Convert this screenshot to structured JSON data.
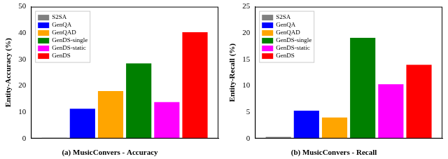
{
  "chart_data": [
    {
      "type": "bar",
      "title": "(a) MusicConvers - Accuracy",
      "y_label": "Entity-Accuracy (%)",
      "categories": [
        null
      ],
      "series": [
        {
          "name": "S2SA",
          "color": "#808080",
          "values": [
            0.3
          ]
        },
        {
          "name": "GenQA",
          "color": "#0000ff",
          "values": [
            11.3
          ]
        },
        {
          "name": "GenQAD",
          "color": "#ffa500",
          "values": [
            18
          ]
        },
        {
          "name": "GenDS-single",
          "color": "#008000",
          "values": [
            28.5
          ]
        },
        {
          "name": "GenDS-static",
          "color": "#ff00ff",
          "values": [
            13.8
          ]
        },
        {
          "name": "GenDS",
          "color": "#ff0000",
          "values": [
            40.3
          ]
        }
      ],
      "ylim": [
        0,
        50
      ],
      "yticks": [
        0,
        10,
        20,
        30,
        40,
        50
      ],
      "legend": "upper left",
      "grid": false,
      "tick_labels": "y"
    },
    {
      "type": "bar",
      "title": "(b) MusicConvers - Recall",
      "y_label": "Entity-Recall (%)",
      "categories": [
        null
      ],
      "series": [
        {
          "name": "S2SA",
          "color": "#808080",
          "values": [
            0.3
          ]
        },
        {
          "name": "GenQA",
          "color": "#0000ff",
          "values": [
            5.3
          ]
        },
        {
          "name": "GenQAD",
          "color": "#ffa500",
          "values": [
            4.0
          ]
        },
        {
          "name": "GenDS-single",
          "color": "#008000",
          "values": [
            19.1
          ]
        },
        {
          "name": "GenDS-static",
          "color": "#ff00ff",
          "values": [
            10.3
          ]
        },
        {
          "name": "GenDS",
          "color": "#ff0000",
          "values": [
            14.0
          ]
        }
      ],
      "ylim": [
        0,
        25
      ],
      "yticks": [
        0,
        5,
        10,
        15,
        20,
        25
      ],
      "legend": "upper left",
      "grid": false,
      "tick_labels": "y"
    }
  ]
}
